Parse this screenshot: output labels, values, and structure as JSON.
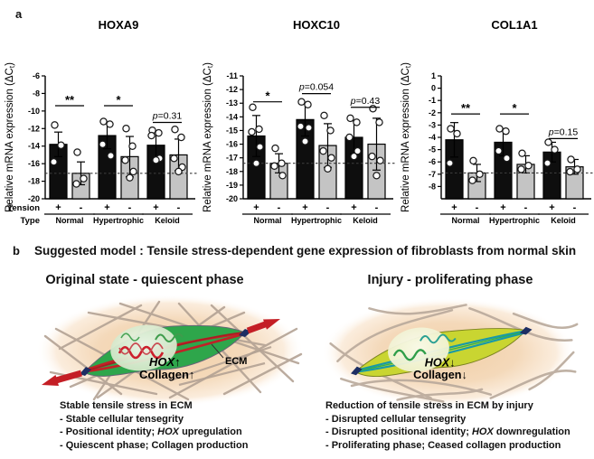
{
  "panel_a": {
    "label": "a",
    "tension_row_label": "Tension",
    "type_row_label": "Type"
  },
  "chart_data": [
    {
      "type": "bar",
      "title": "HOXA9",
      "ylabel": "Relative mRNA expression (ΔCt)",
      "ylim": [
        -20,
        -6
      ],
      "yticks": [
        -6,
        -8,
        -10,
        -12,
        -14,
        -16,
        -18,
        -20
      ],
      "dashed_line": -17.1,
      "grid": false,
      "groups": [
        "Normal",
        "Hypertrophic",
        "Keloid"
      ],
      "bars": [
        {
          "group": "Normal",
          "tension": "+",
          "mean": -13.8,
          "err_high": -12.4,
          "points": [
            -11.6,
            -13.9,
            -15.8
          ]
        },
        {
          "group": "Normal",
          "tension": "-",
          "mean": -17.1,
          "err_high": -15.8,
          "points": [
            -14.7,
            -17.7,
            -18.3
          ]
        },
        {
          "group": "Hypertrophic",
          "tension": "+",
          "mean": -12.8,
          "err_high": -11.3,
          "points": [
            -11.2,
            -11.5,
            -13.8,
            -15.1
          ]
        },
        {
          "group": "Hypertrophic",
          "tension": "-",
          "mean": -15.2,
          "err_high": -12.9,
          "points": [
            -12.0,
            -14.0,
            -15.6,
            -16.9,
            -17.6
          ]
        },
        {
          "group": "Keloid",
          "tension": "+",
          "mean": -13.9,
          "err_high": -12.3,
          "points": [
            -12.2,
            -12.5,
            -12.8,
            -15.4,
            -15.6
          ]
        },
        {
          "group": "Keloid",
          "tension": "-",
          "mean": -15.0,
          "err_high": -13.2,
          "points": [
            -12.1,
            -13.0,
            -15.4,
            -16.4,
            -16.9
          ]
        }
      ],
      "significance": [
        {
          "group_index": 0,
          "label": "**",
          "line_y": -9.4
        },
        {
          "group_index": 1,
          "label": "*",
          "line_y": -9.4
        },
        {
          "group_index": 2,
          "label": "p=0.31",
          "line_y": -11.3
        }
      ]
    },
    {
      "type": "bar",
      "title": "HOXC10",
      "ylabel": "Relative mRNA expression (ΔCt)",
      "ylim": [
        -20,
        -11
      ],
      "yticks": [
        -11,
        -12,
        -13,
        -14,
        -15,
        -16,
        -17,
        -18,
        -19,
        -20
      ],
      "dashed_line": -17.4,
      "grid": false,
      "groups": [
        "Normal",
        "Hypertrophic",
        "Keloid"
      ],
      "bars": [
        {
          "group": "Normal",
          "tension": "+",
          "mean": -15.4,
          "err_high": -13.9,
          "points": [
            -13.3,
            -14.9,
            -15.1,
            -16.2,
            -17.4
          ]
        },
        {
          "group": "Normal",
          "tension": "-",
          "mean": -17.4,
          "err_high": -16.7,
          "points": [
            -16.3,
            -17.4,
            -17.6,
            -18.3
          ]
        },
        {
          "group": "Hypertrophic",
          "tension": "+",
          "mean": -14.2,
          "err_high": -13.0,
          "points": [
            -12.9,
            -13.1,
            -14.7,
            -14.8,
            -15.8
          ]
        },
        {
          "group": "Hypertrophic",
          "tension": "-",
          "mean": -16.1,
          "err_high": -14.5,
          "points": [
            -13.9,
            -15.0,
            -16.5,
            -17.0,
            -17.8
          ]
        },
        {
          "group": "Keloid",
          "tension": "+",
          "mean": -15.5,
          "err_high": -14.3,
          "points": [
            -14.1,
            -14.4,
            -15.5,
            -16.5,
            -16.9
          ]
        },
        {
          "group": "Keloid",
          "tension": "-",
          "mean": -16.0,
          "err_high": -14.1,
          "points": [
            -13.4,
            -14.4,
            -16.9,
            -17.2,
            -18.3
          ]
        }
      ],
      "significance": [
        {
          "group_index": 0,
          "label": "*",
          "line_y": -12.9
        },
        {
          "group_index": 1,
          "label": "p=0.054",
          "line_y": -12.3
        },
        {
          "group_index": 2,
          "label": "p=0.43",
          "line_y": -13.3
        }
      ]
    },
    {
      "type": "bar",
      "title": "COL1A1",
      "ylabel": "Relative mRNA expression (ΔCt)",
      "ylim": [
        -9,
        1
      ],
      "yticks": [
        1,
        0,
        -1,
        -2,
        -3,
        -4,
        -5,
        -6,
        -7,
        -8
      ],
      "dashed_line": -6.9,
      "grid": false,
      "groups": [
        "Normal",
        "Hypertrophic",
        "Keloid"
      ],
      "bars": [
        {
          "group": "Normal",
          "tension": "+",
          "mean": -4.2,
          "err_high": -2.8,
          "points": [
            -3.3,
            -3.7,
            -6.1
          ]
        },
        {
          "group": "Normal",
          "tension": "-",
          "mean": -6.9,
          "err_high": -6.2,
          "points": [
            -5.9,
            -7.0,
            -7.5
          ]
        },
        {
          "group": "Hypertrophic",
          "tension": "+",
          "mean": -4.4,
          "err_high": -3.3,
          "points": [
            -3.3,
            -3.5,
            -5.1,
            -5.7
          ]
        },
        {
          "group": "Hypertrophic",
          "tension": "-",
          "mean": -6.2,
          "err_high": -5.5,
          "points": [
            -5.3,
            -6.3,
            -6.6
          ]
        },
        {
          "group": "Keloid",
          "tension": "+",
          "mean": -5.2,
          "err_high": -4.4,
          "points": [
            -4.4,
            -5.0,
            -6.1
          ]
        },
        {
          "group": "Keloid",
          "tension": "-",
          "mean": -6.4,
          "err_high": -5.8,
          "points": [
            -5.8,
            -6.6,
            -6.8
          ]
        }
      ],
      "significance": [
        {
          "group_index": 0,
          "label": "**",
          "line_y": -2.1
        },
        {
          "group_index": 1,
          "label": "*",
          "line_y": -2.1
        },
        {
          "group_index": 2,
          "label": "p=0.15",
          "line_y": -4.1
        }
      ]
    }
  ],
  "panel_b": {
    "label": "b",
    "heading": "Suggested model : Tensile stress-dependent gene expression of fibroblasts from normal skin",
    "left": {
      "subtitle": "Original state - quiescent phase",
      "gene_label": "HOX↑",
      "collagen_label": "Collagen↑",
      "ecm_label": "ECM",
      "caption": [
        "Stable tensile stress in ECM",
        "- Stable cellular tensegrity",
        "- Positional identity; HOX upregulation",
        "- Quiescent phase; Collagen production"
      ]
    },
    "right": {
      "subtitle": "Injury - proliferating phase",
      "gene_label": "HOX↓",
      "collagen_label": "Collagen↓",
      "caption": [
        "Reduction of tensile stress in ECM by injury",
        "- Disrupted cellular tensegrity",
        "- Disrupted positional identity; HOX downregulation",
        "- Proliferating phase; Ceased collagen production"
      ]
    }
  },
  "colors": {
    "bar_tension_plus": "#0e0e0e",
    "bar_tension_minus": "#c4c4c4",
    "dashed_line": "#3a3a3a",
    "cell_quiescent_green": "#2ea64b",
    "cell_proliferating_yellow": "#c9d531",
    "tension_arrow_red": "#c41e25",
    "ecm_fiber_gray": "#b3a294",
    "background_halo_peach": "#f3d4b0",
    "focal_adhesion_navy": "#1d2e63"
  }
}
